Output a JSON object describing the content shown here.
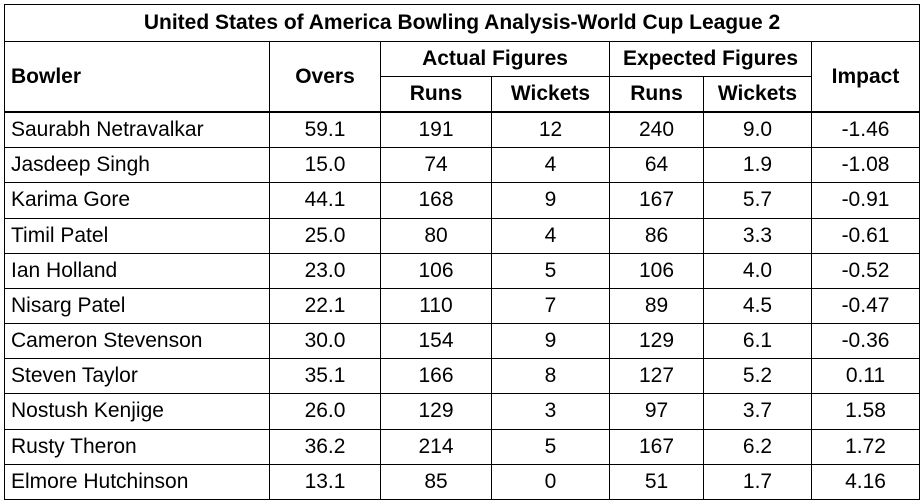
{
  "title": "United States of America Bowling Analysis-World Cup League 2",
  "headers": {
    "bowler": "Bowler",
    "overs": "Overs",
    "actual": "Actual Figures",
    "expected": "Expected Figures",
    "impact": "Impact",
    "runs": "Runs",
    "wickets": "Wickets"
  },
  "rows": [
    {
      "bowler": "Saurabh Netravalkar",
      "overs": "59.1",
      "a_runs": "191",
      "a_wkts": "12",
      "e_runs": "240",
      "e_wkts": "9.0",
      "impact": "-1.46"
    },
    {
      "bowler": "Jasdeep Singh",
      "overs": "15.0",
      "a_runs": "74",
      "a_wkts": "4",
      "e_runs": "64",
      "e_wkts": "1.9",
      "impact": "-1.08"
    },
    {
      "bowler": "Karima Gore",
      "overs": "44.1",
      "a_runs": "168",
      "a_wkts": "9",
      "e_runs": "167",
      "e_wkts": "5.7",
      "impact": "-0.91"
    },
    {
      "bowler": "Timil Patel",
      "overs": "25.0",
      "a_runs": "80",
      "a_wkts": "4",
      "e_runs": "86",
      "e_wkts": "3.3",
      "impact": "-0.61"
    },
    {
      "bowler": "Ian Holland",
      "overs": "23.0",
      "a_runs": "106",
      "a_wkts": "5",
      "e_runs": "106",
      "e_wkts": "4.0",
      "impact": "-0.52"
    },
    {
      "bowler": "Nisarg Patel",
      "overs": "22.1",
      "a_runs": "110",
      "a_wkts": "7",
      "e_runs": "89",
      "e_wkts": "4.5",
      "impact": "-0.47"
    },
    {
      "bowler": "Cameron Stevenson",
      "overs": "30.0",
      "a_runs": "154",
      "a_wkts": "9",
      "e_runs": "129",
      "e_wkts": "6.1",
      "impact": "-0.36"
    },
    {
      "bowler": "Steven Taylor",
      "overs": "35.1",
      "a_runs": "166",
      "a_wkts": "8",
      "e_runs": "127",
      "e_wkts": "5.2",
      "impact": "0.11"
    },
    {
      "bowler": "Nostush Kenjige",
      "overs": "26.0",
      "a_runs": "129",
      "a_wkts": "3",
      "e_runs": "97",
      "e_wkts": "3.7",
      "impact": "1.58"
    },
    {
      "bowler": "Rusty Theron",
      "overs": "36.2",
      "a_runs": "214",
      "a_wkts": "5",
      "e_runs": "167",
      "e_wkts": "6.2",
      "impact": "1.72"
    },
    {
      "bowler": "Elmore Hutchinson",
      "overs": "13.1",
      "a_runs": "85",
      "a_wkts": "0",
      "e_runs": "51",
      "e_wkts": "1.7",
      "impact": "4.16"
    }
  ]
}
